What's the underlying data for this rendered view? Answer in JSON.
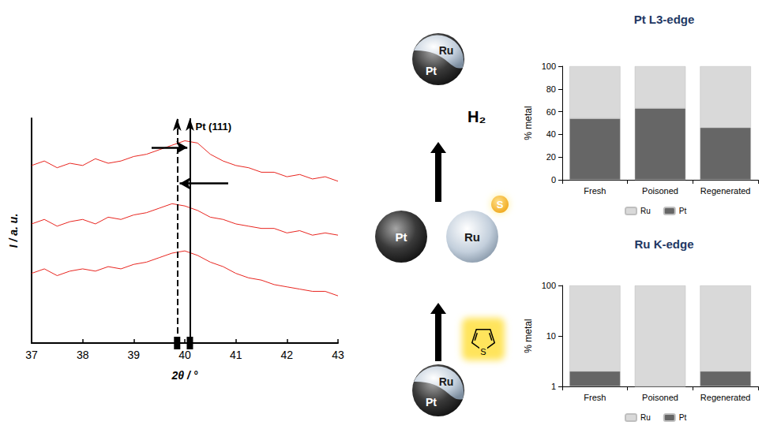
{
  "chart_data": [
    {
      "type": "line",
      "x_label": "2θ / °",
      "y_label": "I / a. u.",
      "x": [
        37,
        37.25,
        37.5,
        37.75,
        38,
        38.25,
        38.5,
        38.75,
        39,
        39.25,
        39.5,
        39.75,
        40,
        40.25,
        40.5,
        40.75,
        41,
        41.25,
        41.5,
        41.75,
        42,
        42.25,
        42.5,
        42.75,
        43
      ],
      "series": [
        {
          "color": "#e8251f",
          "values": [
            0.79,
            0.81,
            0.78,
            0.8,
            0.79,
            0.82,
            0.8,
            0.81,
            0.83,
            0.84,
            0.86,
            0.88,
            0.9,
            0.89,
            0.84,
            0.81,
            0.79,
            0.78,
            0.76,
            0.76,
            0.74,
            0.75,
            0.73,
            0.74,
            0.72
          ]
        },
        {
          "color": "#e8251f",
          "values": [
            0.53,
            0.55,
            0.52,
            0.54,
            0.55,
            0.53,
            0.56,
            0.55,
            0.57,
            0.58,
            0.6,
            0.62,
            0.61,
            0.59,
            0.56,
            0.55,
            0.53,
            0.52,
            0.51,
            0.51,
            0.49,
            0.5,
            0.48,
            0.49,
            0.48
          ]
        },
        {
          "color": "#e8251f",
          "values": [
            0.31,
            0.33,
            0.3,
            0.32,
            0.33,
            0.32,
            0.34,
            0.33,
            0.35,
            0.36,
            0.38,
            0.4,
            0.41,
            0.39,
            0.36,
            0.34,
            0.31,
            0.29,
            0.28,
            0.26,
            0.25,
            0.24,
            0.23,
            0.23,
            0.21
          ]
        }
      ],
      "xlim": [
        37,
        43
      ],
      "xticks": [
        37,
        38,
        39,
        40,
        41,
        42,
        43
      ],
      "ylim": [
        0,
        1
      ],
      "tick_labels": "x",
      "grid": false,
      "vlines": [
        {
          "x": 40.1,
          "line_style": "solid",
          "label": "Pt (111)"
        },
        {
          "x": 39.85,
          "line_style": "dashed"
        }
      ],
      "arrows": [
        {
          "x_from": 39.35,
          "x_to": 40.05,
          "y": 0.87
        },
        {
          "x_from": 40.85,
          "x_to": 39.9,
          "y": 0.71
        }
      ]
    },
    {
      "type": "bar",
      "title": "Pt L3-edge",
      "y_label": "% metal",
      "categories": [
        "Fresh",
        "Poisoned",
        "Regenerated"
      ],
      "series": [
        {
          "name": "Ru",
          "color": "#d9d9d9",
          "values": [
            46,
            37,
            54
          ]
        },
        {
          "name": "Pt",
          "color": "#666666",
          "values": [
            54,
            63,
            46
          ]
        }
      ],
      "stacked": true,
      "ylim": [
        0,
        100
      ],
      "yticks": [
        0,
        20,
        40,
        60,
        80,
        100
      ],
      "legend": "bottom",
      "grid": false
    },
    {
      "type": "bar",
      "title": "Ru K-edge",
      "y_label": "% metal",
      "categories": [
        "Fresh",
        "Poisoned",
        "Regenerated"
      ],
      "series": [
        {
          "name": "Ru",
          "color": "#d9d9d9",
          "values": [
            98,
            99,
            98
          ]
        },
        {
          "name": "Pt",
          "color": "#666666",
          "values": [
            2,
            1,
            2
          ]
        }
      ],
      "stacked": true,
      "log": "y",
      "ylim": [
        1,
        100
      ],
      "yticks": [
        1,
        10,
        100
      ],
      "legend": "bottom",
      "grid": false
    }
  ],
  "diagram": {
    "start": {
      "upper": "Ru",
      "lower": "Pt"
    },
    "poison": "S",
    "left": "Pt",
    "right": "Ru",
    "adsorbed": "S",
    "reagent": "H₂",
    "end": {
      "upper": "Ru",
      "lower": "Pt"
    }
  }
}
